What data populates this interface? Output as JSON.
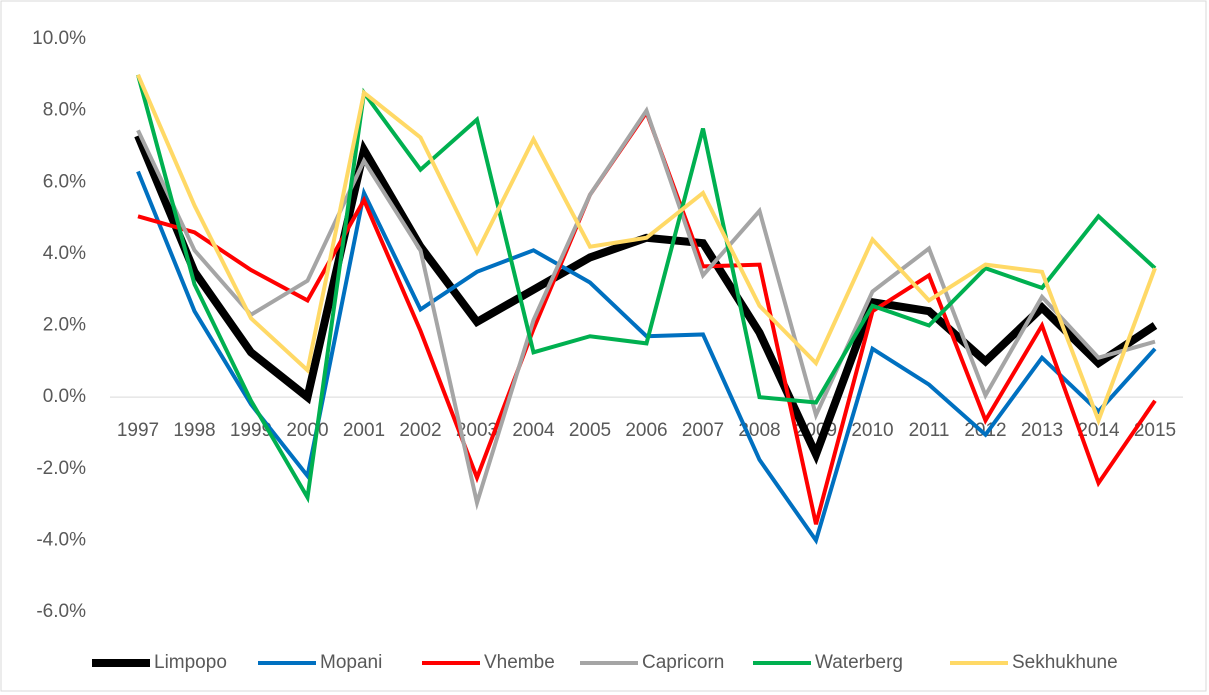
{
  "chart_data": {
    "type": "line",
    "categories": [
      "1997",
      "1998",
      "1999",
      "2000",
      "2001",
      "2002",
      "2003",
      "2004",
      "2005",
      "2006",
      "2007",
      "2008",
      "2009",
      "2010",
      "2011",
      "2012",
      "2013",
      "2014",
      "2015"
    ],
    "series": [
      {
        "name": "Limpopo",
        "color": "#000000",
        "values": [
          7.3,
          3.5,
          1.25,
          0.0,
          6.9,
          4.2,
          2.1,
          3.0,
          3.9,
          4.45,
          4.3,
          1.8,
          -1.6,
          2.65,
          2.4,
          1.0,
          2.5,
          0.95,
          2.0
        ]
      },
      {
        "name": "Mopani",
        "color": "#0070c0",
        "values": [
          6.3,
          2.4,
          -0.2,
          -2.2,
          5.7,
          2.45,
          3.5,
          4.1,
          3.2,
          1.7,
          1.75,
          -1.75,
          -4.0,
          1.35,
          0.35,
          -1.05,
          1.1,
          -0.4,
          1.35
        ]
      },
      {
        "name": "Vhembe",
        "color": "#ff0000",
        "values": [
          5.05,
          4.6,
          3.55,
          2.7,
          5.5,
          1.85,
          -2.25,
          1.9,
          5.65,
          7.95,
          3.65,
          3.7,
          -3.55,
          2.4,
          3.4,
          -0.65,
          2.0,
          -2.4,
          -0.1
        ]
      },
      {
        "name": "Capricorn",
        "color": "#a5a5a5",
        "values": [
          7.45,
          4.1,
          2.3,
          3.25,
          6.6,
          4.1,
          -2.95,
          2.15,
          5.65,
          8.0,
          3.4,
          5.2,
          -0.5,
          2.95,
          4.15,
          0.05,
          2.8,
          1.1,
          1.55
        ]
      },
      {
        "name": "Waterberg",
        "color": "#00b050",
        "values": [
          9.0,
          3.15,
          -0.1,
          -2.8,
          8.5,
          6.35,
          7.75,
          1.25,
          1.7,
          1.5,
          7.5,
          0.0,
          -0.15,
          2.55,
          2.0,
          3.6,
          3.05,
          5.05,
          3.6
        ]
      },
      {
        "name": "Sekhukhune",
        "color": "#ffd966",
        "values": [
          9.0,
          5.35,
          2.2,
          0.75,
          8.5,
          7.25,
          4.05,
          7.2,
          4.2,
          4.45,
          5.7,
          2.55,
          0.95,
          4.4,
          2.7,
          3.7,
          3.5,
          -0.65,
          3.6
        ]
      }
    ],
    "ylim": [
      -6,
      10
    ],
    "yticks": [
      {
        "value": -6,
        "label": "-6.0%"
      },
      {
        "value": -4,
        "label": "-4.0%"
      },
      {
        "value": -2,
        "label": "-2.0%"
      },
      {
        "value": 0,
        "label": "0.0%"
      },
      {
        "value": 2,
        "label": "2.0%"
      },
      {
        "value": 4,
        "label": "4.0%"
      },
      {
        "value": 6,
        "label": "6.0%"
      },
      {
        "value": 8,
        "label": "8.0%"
      },
      {
        "value": 10,
        "label": "10.0%"
      }
    ],
    "legend": "bottom"
  }
}
